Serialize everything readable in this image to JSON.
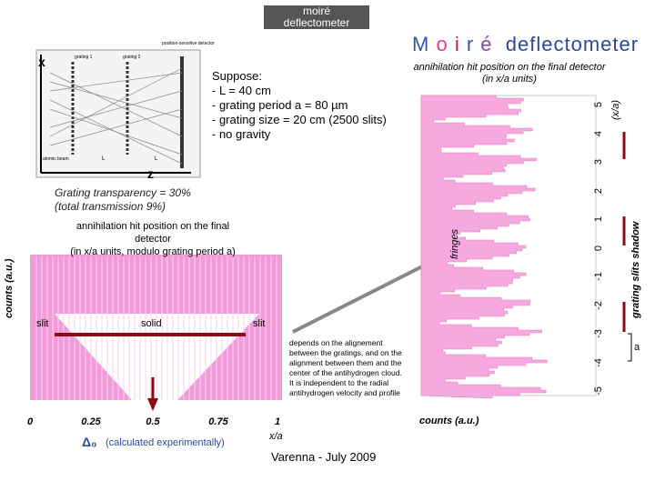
{
  "header": {
    "badge": [
      "moiré",
      "deflectometer"
    ],
    "title_letters": [
      "M",
      "o",
      "i",
      "r",
      "é"
    ],
    "title_rest": "deflectometer"
  },
  "diagram": {
    "x_label": "x",
    "z_label": "z",
    "labels": [
      "grating 1",
      "grating 2",
      "position-sensitive detector",
      "atomic beam",
      "L",
      "L"
    ]
  },
  "suppose": [
    "Suppose:",
    "- L = 40 cm",
    "- grating period a = 80 µm",
    "- grating size = 20 cm (2500 slits)",
    "- no gravity"
  ],
  "left_plot": {
    "transparency": [
      "Grating transparency = 30%",
      "(total transmission 9%)"
    ],
    "caption": [
      "annihilation hit position on the final",
      "detector",
      "(in x/a units, modulo grating period a)"
    ],
    "ylabel": "counts (a.u.)",
    "regions": [
      "slit",
      "solid",
      "slit"
    ],
    "xticks": [
      "0",
      "0.25",
      "0.5",
      "0.75",
      "1"
    ],
    "xlabel": "x/a",
    "delta": "Δ₀",
    "delta_note": "(calculated experimentally)"
  },
  "note": [
    "depends on the alignement",
    "between the gratings, and on the",
    "alignment between them and the",
    "center of the antihydrogen cloud.",
    "It is independent to the radial",
    "antihydrogen velocity and profile"
  ],
  "right_plot": {
    "caption": [
      "annihilation hit position on the final detector",
      "(in x/a units)"
    ],
    "fringes": "fringes",
    "yticks": [
      "5",
      "4",
      "3",
      "2",
      "1",
      "0",
      "-1",
      "-2",
      "-3",
      "-4",
      "-5"
    ],
    "ylabel": "(x/a)",
    "shadow": "grating slits shadow",
    "a": "a",
    "xlabel": "counts (a.u.)"
  },
  "footer": "Varenna - July 2009"
}
